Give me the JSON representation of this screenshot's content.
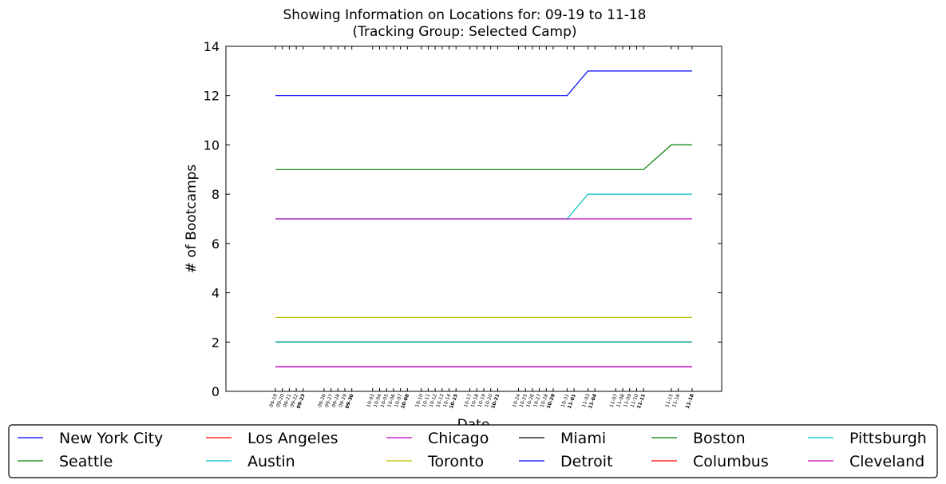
{
  "chart_data": {
    "type": "line",
    "title": "Showing Information on Locations for: 09-19 to 11-18",
    "subtitle": "(Tracking Group: Selected Camp)",
    "xlabel": "Date",
    "ylabel": "# of Bootcamps",
    "ylim": [
      0,
      14
    ],
    "yticks": [
      0,
      2,
      4,
      6,
      8,
      10,
      12,
      14
    ],
    "grid": false,
    "legend_position": "bottom",
    "x_dates": [
      "09-19",
      "09-20",
      "09-21",
      "09-22",
      "09-23",
      "09-26",
      "09-27",
      "09-28",
      "09-29",
      "09-30",
      "10-03",
      "10-04",
      "10-05",
      "10-06",
      "10-07",
      "10-08",
      "10-10",
      "10-11",
      "10-12",
      "10-13",
      "10-14",
      "10-15",
      "10-17",
      "10-18",
      "10-19",
      "10-20",
      "10-21",
      "10-24",
      "10-25",
      "10-26",
      "10-27",
      "10-28",
      "10-29",
      "10-31",
      "11-01",
      "11-03",
      "11-04",
      "11-07",
      "11-08",
      "11-09",
      "11-10",
      "11-11",
      "11-15",
      "11-16",
      "11-18"
    ],
    "x_tick_labels": [
      "09-19",
      "09-20",
      "09-21",
      "09-22",
      "09-23",
      "09-26",
      "09-27",
      "09-28",
      "09-29",
      "09-30",
      "10-03",
      "10-04",
      "10-05",
      "10-06",
      "10-07",
      "10-08",
      "10-10",
      "10-11",
      "10-12",
      "10-13",
      "10-14",
      "10-15",
      "10-17",
      "10-18",
      "10-19",
      "10-20",
      "10-21",
      "10-24",
      "10-25",
      "10-26",
      "10-27",
      "10-28",
      "10-29",
      "10-31",
      "11-01",
      "11-03",
      "11-04",
      "11-07",
      "11-08",
      "11-09",
      "11-10",
      "11-11",
      "11-15",
      "11-16",
      "11-18"
    ],
    "bold_ticks": [
      "09-23",
      "09-30",
      "10-08",
      "10-15",
      "10-21",
      "10-29",
      "11-01",
      "11-04",
      "11-11",
      "11-18"
    ],
    "series": [
      {
        "name": "New York City",
        "color": "#0000ff",
        "points": [
          [
            "09-19",
            12
          ],
          [
            "10-31",
            12
          ],
          [
            "11-03",
            13
          ],
          [
            "11-18",
            13
          ]
        ]
      },
      {
        "name": "Seattle",
        "color": "#008000",
        "points": [
          [
            "09-19",
            9
          ],
          [
            "11-11",
            9
          ],
          [
            "11-15",
            10
          ],
          [
            "11-18",
            10
          ]
        ]
      },
      {
        "name": "Los Angeles",
        "color": "#ff0000",
        "points": [
          [
            "09-19",
            2
          ],
          [
            "11-18",
            2
          ]
        ]
      },
      {
        "name": "Austin",
        "color": "#00bfbf",
        "points": [
          [
            "09-19",
            7
          ],
          [
            "10-31",
            7
          ],
          [
            "11-03",
            8
          ],
          [
            "11-18",
            8
          ]
        ]
      },
      {
        "name": "Chicago",
        "color": "#bf00bf",
        "points": [
          [
            "09-19",
            7
          ],
          [
            "11-18",
            7
          ]
        ]
      },
      {
        "name": "Toronto",
        "color": "#bfbf00",
        "points": [
          [
            "09-19",
            3
          ],
          [
            "11-18",
            3
          ]
        ]
      },
      {
        "name": "Miami",
        "color": "#000000",
        "points": [
          [
            "09-19",
            2
          ],
          [
            "11-18",
            2
          ]
        ]
      },
      {
        "name": "Detroit",
        "color": "#0000ff",
        "points": [
          [
            "09-19",
            1
          ],
          [
            "11-18",
            1
          ]
        ]
      },
      {
        "name": "Boston",
        "color": "#008000",
        "points": [
          [
            "09-19",
            2
          ],
          [
            "11-18",
            2
          ]
        ]
      },
      {
        "name": "Columbus",
        "color": "#ff0000",
        "points": [
          [
            "09-19",
            1
          ],
          [
            "11-18",
            1
          ]
        ]
      },
      {
        "name": "Pittsburgh",
        "color": "#00bfbf",
        "points": [
          [
            "09-19",
            2
          ],
          [
            "11-18",
            2
          ]
        ]
      },
      {
        "name": "Cleveland",
        "color": "#bf00bf",
        "points": [
          [
            "09-19",
            1
          ],
          [
            "11-18",
            1
          ]
        ]
      }
    ]
  }
}
